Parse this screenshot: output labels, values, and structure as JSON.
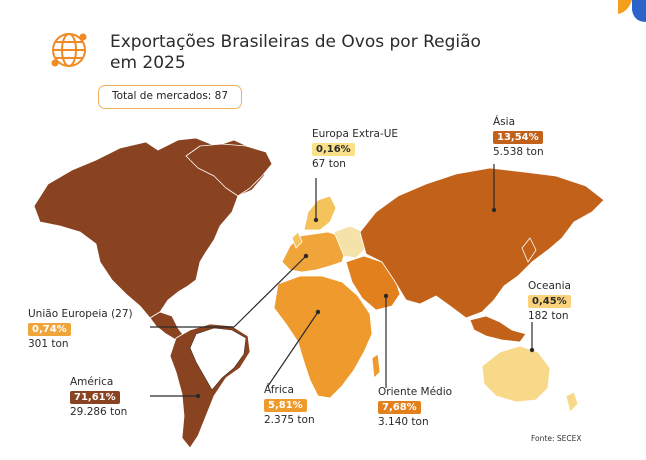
{
  "header": {
    "title": "Exportações Brasileiras de Ovos por Região em 2025",
    "markets_label": "Total de mercados: 87"
  },
  "regions": {
    "europa_extra": {
      "name": "Europa Extra-UE",
      "pct": "0,16%",
      "tons": "67 ton",
      "color": "#f5c35c"
    },
    "asia": {
      "name": "Ásia",
      "pct": "13,54%",
      "tons": "5.538 ton",
      "color": "#c2611a"
    },
    "oceania": {
      "name": "Oceania",
      "pct": "0,45%",
      "tons": "182 ton",
      "color": "#f2ad52"
    },
    "uniao_europeia": {
      "name": "União Europeia (27)",
      "pct": "0,74%",
      "tons": "301 ton",
      "color": "#f0a53b"
    },
    "america": {
      "name": "América",
      "pct": "71,61%",
      "tons": "29.286 ton",
      "color": "#8a4320"
    },
    "africa": {
      "name": "África",
      "pct": "5,81%",
      "tons": "2.375 ton",
      "color": "#ef9a2d"
    },
    "oriente_medio": {
      "name": "Oriente Médio",
      "pct": "7,68%",
      "tons": "3.140 ton",
      "color": "#e2801d"
    }
  },
  "source": "Fonte: SECEX",
  "icons": {
    "globe": "globe-icon",
    "logo": "corner-logo"
  }
}
